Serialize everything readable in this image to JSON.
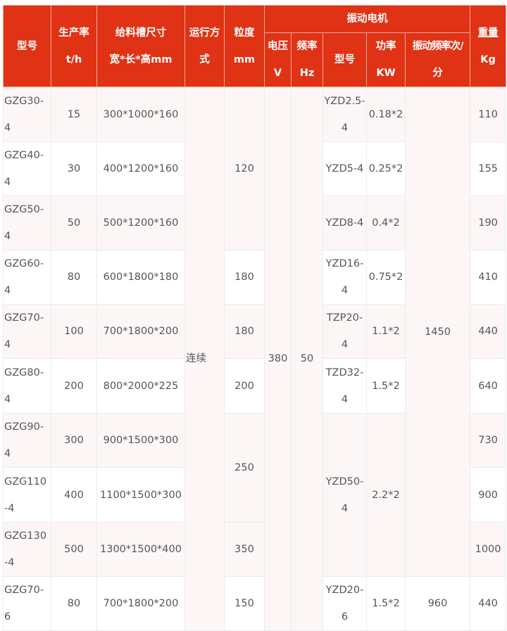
{
  "header": {
    "model": [
      "型号"
    ],
    "capacity": [
      "生产率",
      "t/h"
    ],
    "trough": [
      "给料槽尺寸",
      "宽*长*高mm"
    ],
    "run": [
      "运行方",
      "式"
    ],
    "granularity": [
      "粒度",
      "mm"
    ],
    "motor_group": "振动电机",
    "voltage": [
      "电压",
      "V"
    ],
    "frequency": [
      "频率",
      "Hz"
    ],
    "motor_model": "型号",
    "power": [
      "功率",
      "KW"
    ],
    "vib_freq": [
      "振动频率次/",
      "分"
    ],
    "weight": [
      "重量",
      "Kg"
    ]
  },
  "rows": [
    {
      "model": "GZG30-4",
      "capacity": "15",
      "trough": "300*1000*160",
      "run": "连续",
      "granularity": "120",
      "voltage": "380",
      "frequency": "50",
      "motor_model": "YZD2.5-4",
      "power": "0.18*2",
      "vib_freq": "1450",
      "weight": "110"
    },
    {
      "model": "GZG40-4",
      "capacity": "30",
      "trough": "400*1200*160",
      "motor_model": "YZD5-4",
      "power": "0.25*2",
      "weight": "155"
    },
    {
      "model": "GZG50-4",
      "capacity": "50",
      "trough": "500*1200*160",
      "motor_model": "YZD8-4",
      "power": "0.4*2",
      "weight": "190"
    },
    {
      "model": "GZG60-4",
      "capacity": "80",
      "trough": "600*1800*180",
      "granularity": "180",
      "motor_model": "YZD16-4",
      "power": "0.75*2",
      "weight": "410"
    },
    {
      "model": "GZG70-4",
      "capacity": "100",
      "trough": "700*1800*200",
      "granularity": "180",
      "motor_model": "TZP20-4",
      "power": "1.1*2",
      "weight": "440"
    },
    {
      "model": "GZG80-4",
      "capacity": "200",
      "trough": "800*2000*225",
      "granularity": "200",
      "motor_model": "TZD32-4",
      "power": "1.5*2",
      "weight": "640"
    },
    {
      "model": "GZG90-4",
      "capacity": "300",
      "trough": "900*1500*300",
      "granularity": "250",
      "motor_model": "YZD50-4",
      "power": "2.2*2",
      "weight": "730"
    },
    {
      "model": "GZG110-4",
      "capacity": "400",
      "trough": "1100*1500*300",
      "weight": "900"
    },
    {
      "model": "GZG130-4",
      "capacity": "500",
      "trough": "1300*1500*400",
      "granularity": "350",
      "weight": "1000"
    },
    {
      "model": "GZG70-6",
      "capacity": "80",
      "trough": "700*1800*200",
      "granularity": "150",
      "motor_model": "YZD20-6",
      "power": "1.5*2",
      "vib_freq": "960",
      "weight": "440"
    }
  ]
}
